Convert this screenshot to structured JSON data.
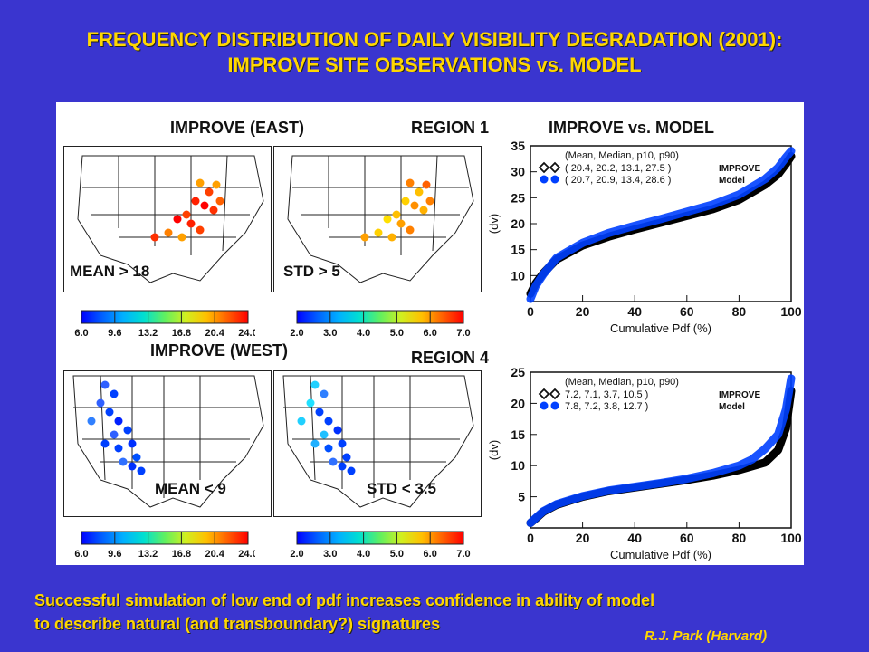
{
  "title": {
    "line1": "FREQUENCY DISTRIBUTION OF DAILY VISIBILITY DEGRADATION (2001):",
    "line2": "IMPROVE SITE OBSERVATIONS vs. MODEL"
  },
  "labels": {
    "east_header": "IMPROVE (EAST)",
    "region1": "REGION 1",
    "compare_header": "IMPROVE vs. MODEL",
    "west_header": "IMPROVE (WEST)",
    "region4": "REGION 4",
    "mean_east": "MEAN > 18",
    "std_east": "STD > 5",
    "mean_west": "MEAN < 9",
    "std_west": "STD < 3.5"
  },
  "colorbars": {
    "mean_ticks": [
      "6.0",
      "9.6",
      "13.2",
      "16.8",
      "20.4",
      "24.0"
    ],
    "std_ticks": [
      "2.0",
      "3.0",
      "4.0",
      "5.0",
      "6.0",
      "7.0"
    ]
  },
  "chart_data": [
    {
      "type": "line",
      "title": "",
      "xlabel": "Cumulative Pdf (%)",
      "ylabel": "(dv)",
      "xlim": [
        0,
        100
      ],
      "ylim": [
        5,
        35
      ],
      "xticks": [
        "0",
        "20",
        "40",
        "60",
        "80",
        "100"
      ],
      "yticks": [
        "10",
        "15",
        "20",
        "25",
        "30",
        "35"
      ],
      "legend_header": "(Mean, Median, p10, p90)",
      "legend_position": "top-left",
      "x": [
        0,
        2,
        5,
        10,
        20,
        30,
        40,
        50,
        60,
        70,
        80,
        90,
        95,
        98,
        100
      ],
      "series": [
        {
          "name": "IMPROVE",
          "stats": "( 20.4, 20.2, 13.1, 27.5 )",
          "color": "#000000",
          "values": [
            6.5,
            8.5,
            10.5,
            13.1,
            15.8,
            17.5,
            18.9,
            20.2,
            21.5,
            22.8,
            24.6,
            27.5,
            29.5,
            31.5,
            33
          ]
        },
        {
          "name": "Model",
          "stats": "( 20.7, 20.9, 13.4, 28.6 )",
          "color": "#0040ff",
          "values": [
            5.5,
            8,
            10.3,
            13.4,
            16.3,
            18.2,
            19.6,
            20.9,
            22.3,
            23.7,
            25.6,
            28.6,
            30.8,
            32.8,
            34
          ]
        }
      ]
    },
    {
      "type": "line",
      "title": "",
      "xlabel": "Cumulative Pdf (%)",
      "ylabel": "(dv)",
      "xlim": [
        0,
        100
      ],
      "ylim": [
        0,
        25
      ],
      "xticks": [
        "0",
        "20",
        "40",
        "60",
        "80",
        "100"
      ],
      "yticks": [
        "5",
        "10",
        "15",
        "20",
        "25"
      ],
      "legend_header": "(Mean, Median, p10, p90)",
      "legend_position": "top-left",
      "x": [
        0,
        2,
        5,
        10,
        20,
        30,
        40,
        50,
        60,
        70,
        80,
        85,
        90,
        95,
        98,
        100
      ],
      "series": [
        {
          "name": "IMPROVE",
          "stats": "7.2,   7.1,   3.7, 10.5 )",
          "color": "#000000",
          "values": [
            0.8,
            1.5,
            2.6,
            3.7,
            5.0,
            5.9,
            6.5,
            7.1,
            7.7,
            8.4,
            9.3,
            9.9,
            10.5,
            12.5,
            16,
            22
          ]
        },
        {
          "name": "Model",
          "stats": "7.8,   7.2,   3.8, 12.7 )",
          "color": "#0040ff",
          "values": [
            0.8,
            1.6,
            2.7,
            3.8,
            5.1,
            6.0,
            6.6,
            7.2,
            7.9,
            8.8,
            10.0,
            11.0,
            12.7,
            15,
            19,
            24
          ]
        }
      ]
    }
  ],
  "footer": {
    "line1": "Successful simulation of low end of pdf increases confidence in ability of model",
    "line2": "to describe natural (and transboundary?) signatures"
  },
  "credit": "R.J. Park (Harvard)"
}
